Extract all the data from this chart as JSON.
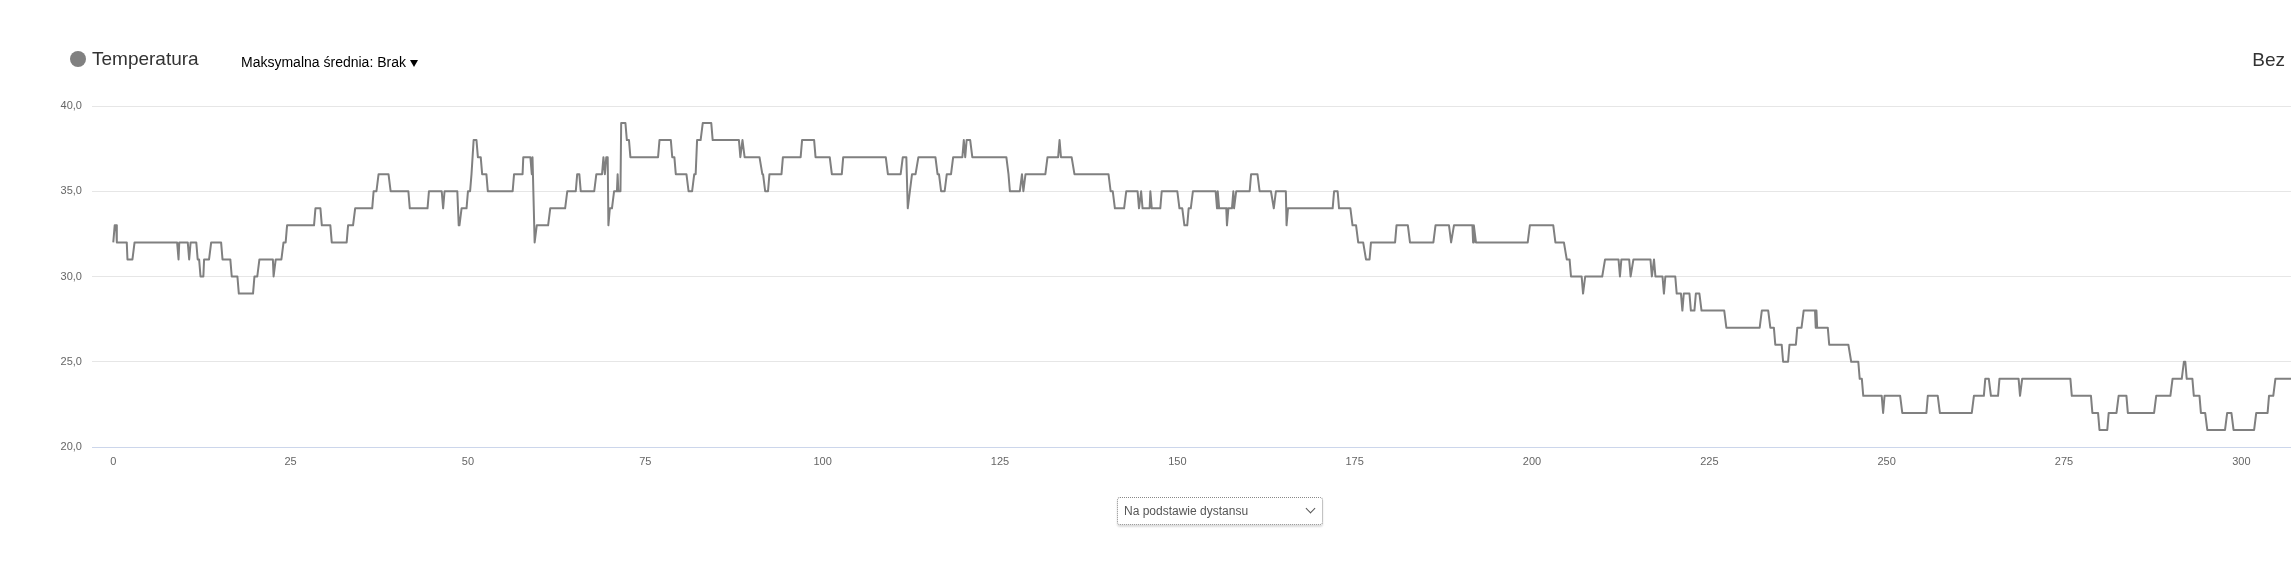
{
  "chart_data": {
    "type": "line",
    "series": [
      {
        "name": "Temperatura",
        "color": "#808080",
        "x": [
          0,
          0.2,
          0.4,
          0.5,
          1.9,
          2.0,
          2.7,
          3.0,
          9.0,
          9.2,
          9.3,
          10.5,
          10.7,
          10.9,
          11.7,
          11.9,
          12.1,
          12.3,
          12.7,
          12.8,
          13.5,
          13.8,
          15.2,
          15.4,
          16.5,
          16.7,
          17.5,
          17.7,
          19.7,
          19.9,
          20.3,
          20.6,
          22.5,
          22.6,
          22.9,
          23.7,
          24.0,
          24.3,
          24.5,
          28.3,
          28.5,
          29.2,
          29.4,
          30.6,
          30.8,
          32.9,
          33.1,
          33.8,
          34.1,
          36.5,
          36.7,
          37.1,
          37.4,
          38.8,
          39.1,
          41.6,
          41.8,
          44.3,
          44.5,
          46.3,
          46.5,
          46.7,
          48.5,
          48.7,
          48.8,
          49.1,
          49.8,
          50.0,
          50.3,
          50.5,
          50.8,
          51.2,
          51.4,
          51.8,
          52.0,
          52.6,
          52.8,
          56.3,
          56.5,
          57.7,
          57.8,
          58.8,
          59.0,
          59.1,
          59.4,
          59.7,
          61.3,
          61.6,
          63.7,
          64.0,
          65.2,
          65.4,
          65.7,
          65.9,
          67.8,
          68.1,
          68.9,
          69.1,
          69.3,
          69.5,
          69.7,
          69.8,
          70.0,
          70.3,
          70.6,
          71.0,
          71.1,
          71.2,
          71.5,
          71.6,
          72.2,
          72.4,
          72.7,
          72.9,
          76.8,
          77.0,
          78.6,
          78.8,
          79.1,
          79.3,
          80.8,
          81.1,
          81.6,
          81.9,
          82.1,
          82.3,
          82.8,
          83.1,
          84.3,
          84.5,
          88.2,
          88.4,
          88.7,
          89.0,
          91.1,
          91.5,
          91.6,
          91.9,
          92.3,
          92.5,
          94.2,
          94.4,
          96.9,
          97.1,
          98.8,
          99.0,
          101.0,
          101.3,
          102.7,
          102.9,
          108.9,
          109.2,
          111.0,
          111.3,
          111.8,
          112.0,
          112.3,
          112.6,
          113.1,
          113.5,
          115.9,
          116.2,
          116.4,
          116.7,
          117.2,
          117.5,
          118.1,
          118.4,
          119.7,
          119.9,
          120.1,
          120.3,
          120.8,
          121.1,
          125.9,
          126.2,
          126.4,
          127.8,
          128.1,
          128.3,
          128.6,
          131.4,
          131.7,
          133.2,
          133.4,
          133.6,
          135.1,
          135.5,
          140.3,
          140.6,
          140.9,
          141.2,
          142.5,
          142.8,
          144.4,
          144.6,
          144.9,
          145.1,
          146.1,
          146.2,
          146.4,
          147.6,
          147.8,
          150.0,
          150.3,
          150.7,
          151.0,
          151.4,
          151.6,
          151.9,
          152.2,
          155.4,
          155.6,
          155.7,
          155.9,
          156.9,
          157.0,
          157.2,
          157.7,
          157.9,
          158.0,
          158.3,
          160.2,
          160.4,
          161.3,
          161.6,
          163.2,
          163.6,
          163.9,
          165.3,
          165.4,
          165.6,
          171.9,
          172.1,
          172.6,
          172.8,
          174.4,
          174.7,
          175.2,
          175.5,
          176.2,
          176.6,
          177.1,
          177.3,
          180.7,
          180.9,
          182.5,
          182.8,
          186.1,
          186.4,
          188.3,
          188.6,
          189.0,
          191.6,
          191.7,
          191.8,
          192.1,
          199.4,
          199.7,
          203.0,
          203.3,
          204.5,
          204.9,
          205.3,
          205.5,
          207.0,
          207.2,
          207.5,
          209.9,
          210.3,
          212.2,
          212.4,
          212.6,
          213.7,
          213.9,
          214.3,
          216.7,
          216.9,
          217.2,
          217.4,
          218.4,
          218.6,
          218.8,
          220.2,
          220.4,
          221.0,
          221.2,
          221.4,
          222.2,
          222.4,
          222.9,
          223.1,
          223.6,
          223.9,
          227.1,
          227.4,
          232.1,
          232.4,
          233.3,
          233.6,
          234.1,
          234.3,
          235.2,
          235.4,
          236.1,
          236.3,
          237.2,
          237.4,
          238.0,
          238.3,
          239.9,
          240.0,
          240.1,
          240.2,
          241.7,
          241.9,
          244.6,
          245.0,
          246.0,
          246.2,
          246.5,
          246.7,
          249.3,
          249.5,
          249.7,
          251.9,
          252.2,
          255.6,
          255.8,
          257.2,
          257.5,
          262.0,
          262.3,
          263.7,
          263.9,
          264.4,
          264.7,
          265.7,
          265.9,
          268.6,
          268.8,
          269.1,
          275.9,
          276.1,
          278.8,
          279.0,
          279.8,
          280.0,
          281.1,
          281.3,
          282.4,
          282.7,
          283.8,
          284.0,
          287.7,
          288.0,
          290.0,
          290.3,
          291.6,
          291.9,
          292.1,
          292.3,
          293.1,
          293.3,
          294.1,
          294.3,
          294.9,
          295.2,
          297.7,
          298.0,
          298.6,
          298.9,
          301.8,
          302.1,
          303.7,
          303.9,
          304.5,
          304.8,
          307.0
        ],
        "values": [
          32,
          33,
          33,
          32,
          32,
          31,
          31,
          32,
          32,
          31,
          32,
          32,
          31,
          32,
          32,
          31,
          31,
          30,
          30,
          31,
          31,
          32,
          32,
          31,
          31,
          30,
          30,
          29,
          29,
          30,
          30,
          31,
          31,
          30,
          31,
          31,
          32,
          32,
          33,
          33,
          34,
          34,
          33,
          33,
          32,
          32,
          33,
          33,
          34,
          34,
          35,
          35,
          36,
          36,
          35,
          35,
          34,
          34,
          35,
          35,
          34,
          35,
          35,
          33,
          33,
          34,
          34,
          35,
          35,
          36,
          38,
          38,
          37,
          37,
          36,
          36,
          35,
          35,
          36,
          36,
          37,
          37,
          36,
          37,
          32,
          33,
          33,
          34,
          34,
          35,
          35,
          36,
          36,
          35,
          35,
          36,
          36,
          37,
          36,
          37,
          37,
          33,
          34,
          34,
          35,
          35,
          36,
          35,
          35,
          39,
          39,
          38,
          38,
          37,
          37,
          38,
          38,
          37,
          37,
          36,
          36,
          35,
          35,
          36,
          36,
          38,
          38,
          39,
          39,
          38,
          38,
          37,
          38,
          37,
          37,
          36,
          36,
          35,
          35,
          36,
          36,
          37,
          37,
          38,
          38,
          37,
          37,
          36,
          36,
          37,
          37,
          36,
          36,
          37,
          37,
          34,
          35,
          36,
          36,
          37,
          37,
          36,
          36,
          35,
          35,
          36,
          36,
          37,
          37,
          38,
          37,
          38,
          38,
          37,
          37,
          36,
          35,
          35,
          36,
          35,
          36,
          36,
          37,
          37,
          38,
          37,
          37,
          36,
          36,
          35,
          35,
          34,
          34,
          35,
          35,
          34,
          35,
          34,
          34,
          35,
          34,
          34,
          35,
          35,
          34,
          34,
          33,
          33,
          34,
          34,
          35,
          35,
          34,
          35,
          34,
          34,
          33,
          34,
          34,
          35,
          34,
          35,
          35,
          36,
          36,
          35,
          35,
          34,
          35,
          35,
          33,
          34,
          34,
          35,
          35,
          34,
          34,
          33,
          33,
          32,
          32,
          31,
          31,
          32,
          32,
          33,
          33,
          32,
          32,
          33,
          33,
          32,
          33,
          33,
          32,
          33,
          32,
          32,
          33,
          33,
          32,
          32,
          31,
          31,
          30,
          30,
          29,
          30,
          30,
          31,
          31,
          30,
          31,
          31,
          30,
          31,
          31,
          30,
          31,
          30,
          30,
          29,
          30,
          30,
          29,
          29,
          28,
          29,
          29,
          28,
          28,
          29,
          29,
          28,
          28,
          27,
          27,
          28,
          28,
          27,
          27,
          26,
          26,
          25,
          25,
          26,
          26,
          27,
          27,
          28,
          28,
          27,
          28,
          27,
          27,
          26,
          26,
          25,
          25,
          24,
          24,
          23,
          23,
          22,
          23,
          23,
          22,
          22,
          23,
          23,
          22,
          22,
          23,
          23,
          24,
          24,
          23,
          23,
          24,
          24,
          23,
          24,
          24,
          23,
          23,
          22,
          22,
          21,
          21,
          22,
          22,
          23,
          23,
          22,
          22,
          23,
          23,
          24,
          24,
          25,
          25,
          24,
          24,
          23,
          23,
          22,
          22,
          21,
          21,
          22,
          22,
          21,
          21,
          22,
          22,
          23,
          23,
          24,
          24
        ]
      }
    ],
    "xlim": [
      -3,
      307
    ],
    "xticks": [
      0,
      25,
      50,
      75,
      100,
      125,
      150,
      175,
      200,
      225,
      250,
      275,
      300
    ],
    "ylim": [
      20,
      40
    ],
    "yticks": [
      {
        "value": 20,
        "label": "20,0"
      },
      {
        "value": 25,
        "label": "25,0"
      },
      {
        "value": 30,
        "label": "30,0"
      },
      {
        "value": 35,
        "label": "35,0"
      },
      {
        "value": 40,
        "label": "40,0"
      }
    ],
    "grid": "y",
    "legend": "top left",
    "marker": "none",
    "line_style": "solid",
    "annotations": [
      "Maksymalna średnia: Brak",
      "Bez",
      "Na podstawie dystansu"
    ]
  }
}
